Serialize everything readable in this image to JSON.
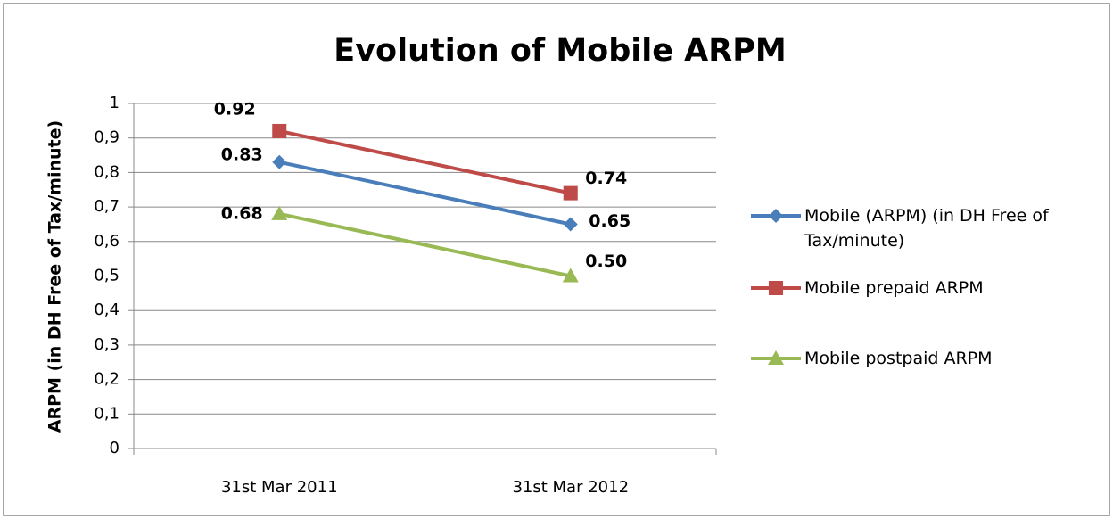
{
  "chart_data": {
    "type": "line",
    "title": "Evolution of Mobile ARPM",
    "y_label": "ARPM (in DH Free of Tax/minute)",
    "categories": [
      "31st Mar 2011",
      "31st Mar 2012"
    ],
    "series": [
      {
        "name": "Mobile (ARPM)  (in DH Free of Tax/minute)",
        "color": "#4a7ebb",
        "marker": "diamond",
        "values": [
          0.83,
          0.65
        ],
        "value_labels": [
          "0.83",
          "0.65"
        ]
      },
      {
        "name": "Mobile prepaid ARPM",
        "color": "#be4b48",
        "marker": "square",
        "values": [
          0.92,
          0.74
        ],
        "value_labels": [
          "0.92",
          "0.74"
        ]
      },
      {
        "name": "Mobile postpaid ARPM",
        "color": "#98b954",
        "marker": "triangle",
        "values": [
          0.68,
          0.5
        ],
        "value_labels": [
          "0.68",
          "0.50"
        ]
      }
    ],
    "ylim": [
      0,
      1
    ],
    "yticks": [
      0,
      {
        "value": 0.1,
        "label": "0,1"
      },
      {
        "value": 0.2,
        "label": "0,2"
      },
      {
        "value": 0.3,
        "label": "0,3"
      },
      {
        "value": 0.4,
        "label": "0,4"
      },
      {
        "value": 0.5,
        "label": "0,5"
      },
      {
        "value": 0.6,
        "label": "0,6"
      },
      {
        "value": 0.7,
        "label": "0,7"
      },
      {
        "value": 0.8,
        "label": "0,8"
      },
      {
        "value": 0.9,
        "label": "0,9"
      },
      1
    ],
    "grid": true,
    "legend": "right"
  }
}
